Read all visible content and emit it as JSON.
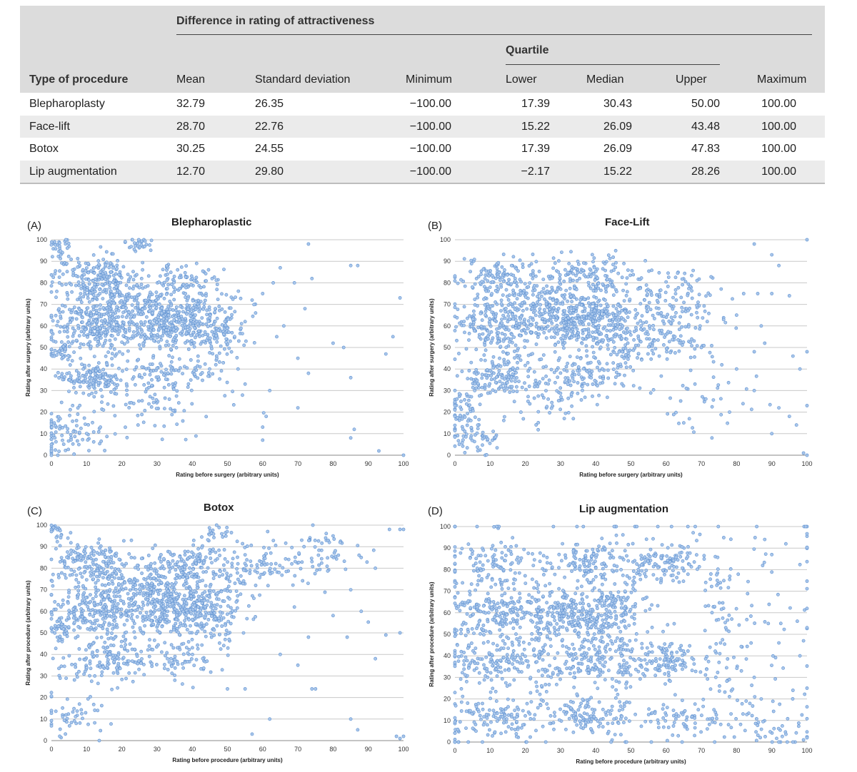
{
  "table": {
    "group_header": "Difference in rating of attractiveness",
    "quartile_header": "Quartile",
    "columns": [
      "Type of procedure",
      "Mean",
      "Standard deviation",
      "Minimum",
      "Lower",
      "Median",
      "Upper",
      "Maximum"
    ],
    "rows": [
      {
        "procedure": "Blepharoplasty",
        "mean": "32.79",
        "sd": "26.35",
        "min": "−100.00",
        "lower": "17.39",
        "median": "30.43",
        "upper": "50.00",
        "max": "100.00"
      },
      {
        "procedure": "Face-lift",
        "mean": "28.70",
        "sd": "22.76",
        "min": "−100.00",
        "lower": "15.22",
        "median": "26.09",
        "upper": "43.48",
        "max": "100.00"
      },
      {
        "procedure": "Botox",
        "mean": "30.25",
        "sd": "24.55",
        "min": "−100.00",
        "lower": "17.39",
        "median": "26.09",
        "upper": "47.83",
        "max": "100.00"
      },
      {
        "procedure": "Lip augmentation",
        "mean": "12.70",
        "sd": "29.80",
        "min": "−100.00",
        "lower": "−2.17",
        "median": "15.22",
        "upper": "28.26",
        "max": "100.00"
      }
    ]
  },
  "chart_data": [
    {
      "type": "scatter",
      "panel_label": "(A)",
      "title": "Blepharoplastic",
      "xlabel": "Rating before surgery (arbitrary units)",
      "ylabel": "Rating after surgery (arbitrary units)",
      "xlim": [
        0,
        100
      ],
      "ylim": [
        0,
        100
      ],
      "xticks": [
        0,
        10,
        20,
        30,
        40,
        50,
        60,
        70,
        80,
        90,
        100
      ],
      "yticks": [
        0,
        10,
        20,
        30,
        40,
        50,
        60,
        70,
        80,
        90,
        100
      ],
      "grid": "horizontal",
      "marker_color": "#a9c6ea",
      "marker_edge": "#5b8fd0",
      "clusters": [
        [
          12,
          83,
          6,
          5,
          200
        ],
        [
          35,
          62,
          9,
          6,
          420
        ],
        [
          12,
          60,
          6,
          6,
          260
        ],
        [
          22,
          72,
          8,
          5,
          160
        ],
        [
          12,
          36,
          5,
          4,
          130
        ],
        [
          5,
          10,
          5,
          5,
          90
        ],
        [
          35,
          38,
          7,
          5,
          90
        ],
        [
          25,
          25,
          12,
          8,
          90
        ],
        [
          38,
          82,
          5,
          4,
          70
        ],
        [
          48,
          55,
          3,
          8,
          70
        ],
        [
          2,
          97,
          2,
          2,
          25
        ],
        [
          24,
          98,
          2,
          2,
          25
        ],
        [
          2,
          48,
          2,
          3,
          40
        ]
      ],
      "scatter_points": [
        [
          57,
          72
        ],
        [
          60,
          75
        ],
        [
          63,
          80
        ],
        [
          65,
          87
        ],
        [
          69,
          80
        ],
        [
          73,
          98
        ],
        [
          74,
          82
        ],
        [
          72,
          68
        ],
        [
          80,
          52
        ],
        [
          83,
          50
        ],
        [
          87,
          88
        ],
        [
          85,
          88
        ],
        [
          95,
          47
        ],
        [
          97,
          55
        ],
        [
          99,
          73
        ],
        [
          85,
          36
        ],
        [
          86,
          12
        ],
        [
          85,
          8
        ],
        [
          93,
          2
        ],
        [
          100,
          0
        ],
        [
          66,
          60
        ],
        [
          62,
          30
        ],
        [
          61,
          18
        ],
        [
          60,
          13
        ],
        [
          70,
          22
        ],
        [
          73,
          38
        ],
        [
          70,
          45
        ],
        [
          64,
          55
        ],
        [
          58,
          66
        ],
        [
          55,
          62
        ],
        [
          53,
          40
        ],
        [
          55,
          33
        ],
        [
          60,
          7
        ]
      ]
    },
    {
      "type": "scatter",
      "panel_label": "(B)",
      "title": "Face-Lift",
      "xlabel": "Rating before surgery (arbitrary units)",
      "ylabel": "Rating after surgery (arbitrary units)",
      "xlim": [
        0,
        100
      ],
      "ylim": [
        0,
        100
      ],
      "xticks": [
        0,
        10,
        20,
        30,
        40,
        50,
        60,
        70,
        80,
        90,
        100
      ],
      "yticks": [
        0,
        10,
        20,
        30,
        40,
        50,
        60,
        70,
        80,
        90,
        100
      ],
      "grid": "horizontal",
      "marker_color": "#a9c6ea",
      "marker_edge": "#5b8fd0",
      "clusters": [
        [
          37,
          62,
          8,
          7,
          420
        ],
        [
          13,
          60,
          6,
          6,
          200
        ],
        [
          13,
          37,
          6,
          5,
          150
        ],
        [
          37,
          83,
          7,
          5,
          140
        ],
        [
          12,
          82,
          6,
          5,
          130
        ],
        [
          2,
          22,
          3,
          6,
          60
        ],
        [
          5,
          8,
          4,
          4,
          50
        ],
        [
          22,
          70,
          8,
          6,
          130
        ],
        [
          37,
          37,
          6,
          5,
          110
        ],
        [
          62,
          72,
          8,
          8,
          130
        ],
        [
          60,
          55,
          6,
          6,
          80
        ],
        [
          48,
          48,
          4,
          8,
          60
        ],
        [
          25,
          25,
          5,
          5,
          40
        ],
        [
          72,
          30,
          8,
          10,
          40
        ]
      ],
      "scatter_points": [
        [
          82,
          75
        ],
        [
          86,
          75
        ],
        [
          90,
          75
        ],
        [
          95,
          74
        ],
        [
          90,
          93
        ],
        [
          92,
          88
        ],
        [
          80,
          65
        ],
        [
          85,
          48
        ],
        [
          88,
          52
        ],
        [
          96,
          46
        ],
        [
          98,
          40
        ],
        [
          100,
          48
        ],
        [
          92,
          22
        ],
        [
          95,
          18
        ],
        [
          97,
          14
        ],
        [
          90,
          10
        ],
        [
          100,
          23
        ],
        [
          99,
          1
        ],
        [
          100,
          0
        ],
        [
          80,
          40
        ],
        [
          85,
          30
        ],
        [
          78,
          20
        ],
        [
          73,
          8
        ],
        [
          65,
          15
        ],
        [
          70,
          50
        ],
        [
          87,
          60
        ],
        [
          100,
          100
        ],
        [
          85,
          98
        ]
      ]
    },
    {
      "type": "scatter",
      "panel_label": "(C)",
      "title": "Botox",
      "xlabel": "Rating before procedure (arbitrary units)",
      "ylabel": "Rating after procedure (arbitrary units)",
      "xlim": [
        0,
        100
      ],
      "ylim": [
        0,
        100
      ],
      "xticks": [
        0,
        10,
        20,
        30,
        40,
        50,
        60,
        70,
        80,
        90,
        100
      ],
      "yticks": [
        0,
        10,
        20,
        30,
        40,
        50,
        60,
        70,
        80,
        90,
        100
      ],
      "grid": "horizontal",
      "marker_color": "#a9c6ea",
      "marker_edge": "#5b8fd0",
      "clusters": [
        [
          35,
          62,
          9,
          7,
          420
        ],
        [
          12,
          60,
          6,
          6,
          200
        ],
        [
          12,
          83,
          6,
          5,
          170
        ],
        [
          38,
          82,
          7,
          5,
          140
        ],
        [
          15,
          37,
          6,
          5,
          140
        ],
        [
          25,
          72,
          10,
          6,
          150
        ],
        [
          48,
          60,
          3,
          10,
          70
        ],
        [
          60,
          82,
          6,
          5,
          80
        ],
        [
          75,
          85,
          6,
          6,
          60
        ],
        [
          5,
          12,
          5,
          5,
          50
        ],
        [
          35,
          38,
          6,
          5,
          80
        ],
        [
          2,
          50,
          2,
          3,
          30
        ],
        [
          2,
          97,
          2,
          2,
          20
        ],
        [
          48,
          97,
          2,
          2,
          20
        ]
      ],
      "scatter_points": [
        [
          80,
          95
        ],
        [
          82,
          92
        ],
        [
          88,
          85
        ],
        [
          92,
          80
        ],
        [
          96,
          98
        ],
        [
          99,
          98
        ],
        [
          100,
          98
        ],
        [
          85,
          70
        ],
        [
          88,
          60
        ],
        [
          90,
          55
        ],
        [
          95,
          49
        ],
        [
          99,
          50
        ],
        [
          92,
          38
        ],
        [
          84,
          48
        ],
        [
          80,
          58
        ],
        [
          73,
          48
        ],
        [
          74,
          24
        ],
        [
          75,
          24
        ],
        [
          85,
          10
        ],
        [
          87,
          5
        ],
        [
          98,
          2
        ],
        [
          99,
          1
        ],
        [
          100,
          2
        ],
        [
          70,
          35
        ],
        [
          65,
          40
        ],
        [
          62,
          10
        ],
        [
          57,
          3
        ],
        [
          55,
          24
        ],
        [
          50,
          24
        ],
        [
          69,
          62
        ]
      ]
    },
    {
      "type": "scatter",
      "panel_label": "(D)",
      "title": "Lip augmentation",
      "xlabel": "Rating before procedure (arbitrary units)",
      "ylabel": "Rating after procedure (arbitrary units)",
      "xlim": [
        0,
        100
      ],
      "ylim": [
        0,
        100
      ],
      "xticks": [
        0,
        10,
        20,
        30,
        40,
        50,
        60,
        70,
        80,
        90,
        100
      ],
      "yticks": [
        0,
        10,
        20,
        30,
        40,
        50,
        60,
        70,
        80,
        90,
        100
      ],
      "grid": "horizontal",
      "marker_color": "#a9c6ea",
      "marker_edge": "#5b8fd0",
      "clusters": [
        [
          37,
          60,
          7,
          6,
          280
        ],
        [
          12,
          60,
          6,
          6,
          170
        ],
        [
          12,
          37,
          6,
          5,
          130
        ],
        [
          37,
          37,
          6,
          5,
          130
        ],
        [
          60,
          37,
          6,
          5,
          110
        ],
        [
          37,
          83,
          5,
          5,
          110
        ],
        [
          60,
          83,
          6,
          5,
          110
        ],
        [
          12,
          83,
          5,
          5,
          90
        ],
        [
          48,
          50,
          2,
          25,
          120
        ],
        [
          25,
          50,
          2,
          25,
          90
        ],
        [
          37,
          12,
          6,
          5,
          100
        ],
        [
          62,
          12,
          7,
          5,
          80
        ],
        [
          12,
          12,
          7,
          6,
          110
        ],
        [
          75,
          50,
          3,
          20,
          50
        ],
        [
          2,
          40,
          2,
          25,
          40
        ],
        [
          85,
          55,
          8,
          20,
          40
        ],
        [
          90,
          10,
          6,
          6,
          40
        ],
        [
          50,
          50,
          40,
          40,
          180
        ]
      ],
      "scatter_points": [
        [
          92,
          0
        ],
        [
          96,
          0
        ],
        [
          99,
          1
        ],
        [
          100,
          2
        ],
        [
          90,
          87
        ],
        [
          88,
          94
        ],
        [
          94,
          92
        ],
        [
          98,
          40
        ],
        [
          100,
          25
        ],
        [
          96,
          24
        ],
        [
          89,
          55
        ],
        [
          92,
          46
        ],
        [
          99,
          47
        ],
        [
          85,
          30
        ],
        [
          87,
          20
        ]
      ]
    }
  ]
}
